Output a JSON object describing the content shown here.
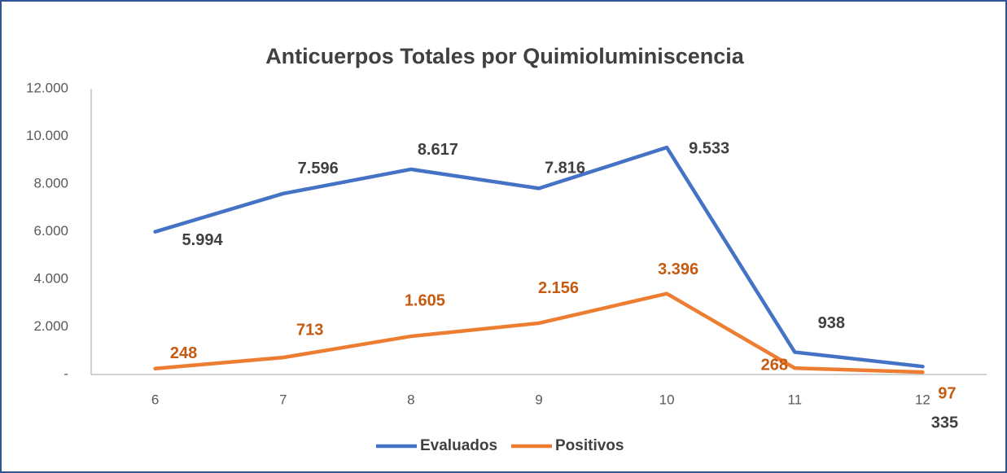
{
  "chart_data": {
    "type": "line",
    "title": "Anticuerpos Totales por Quimioluminiscencia",
    "categories": [
      "6",
      "7",
      "8",
      "9",
      "10",
      "11",
      "12"
    ],
    "series": [
      {
        "name": "Evaluados",
        "color": "#4472c4",
        "values": [
          5994,
          7596,
          8617,
          7816,
          9533,
          938,
          335
        ],
        "value_labels": [
          "5.994",
          "7.596",
          "8.617",
          "7.816",
          "9.533",
          "938",
          "335"
        ],
        "label_color": "#404040"
      },
      {
        "name": "Positivos",
        "color": "#ed7d31",
        "values": [
          248,
          713,
          1605,
          2156,
          3396,
          268,
          97
        ],
        "value_labels": [
          "248",
          "713",
          "1.605",
          "2.156",
          "3.396",
          "268",
          "97"
        ],
        "label_color": "#c55a11"
      }
    ],
    "ylim": [
      0,
      12000
    ],
    "yticks": [
      {
        "value": 0,
        "label": "-"
      },
      {
        "value": 2000,
        "label": "2.000"
      },
      {
        "value": 4000,
        "label": "4.000"
      },
      {
        "value": 6000,
        "label": "6.000"
      },
      {
        "value": 8000,
        "label": "8.000"
      },
      {
        "value": 10000,
        "label": "10.000"
      },
      {
        "value": 12000,
        "label": "12.000"
      }
    ],
    "grid": false,
    "legend": "bottom"
  }
}
